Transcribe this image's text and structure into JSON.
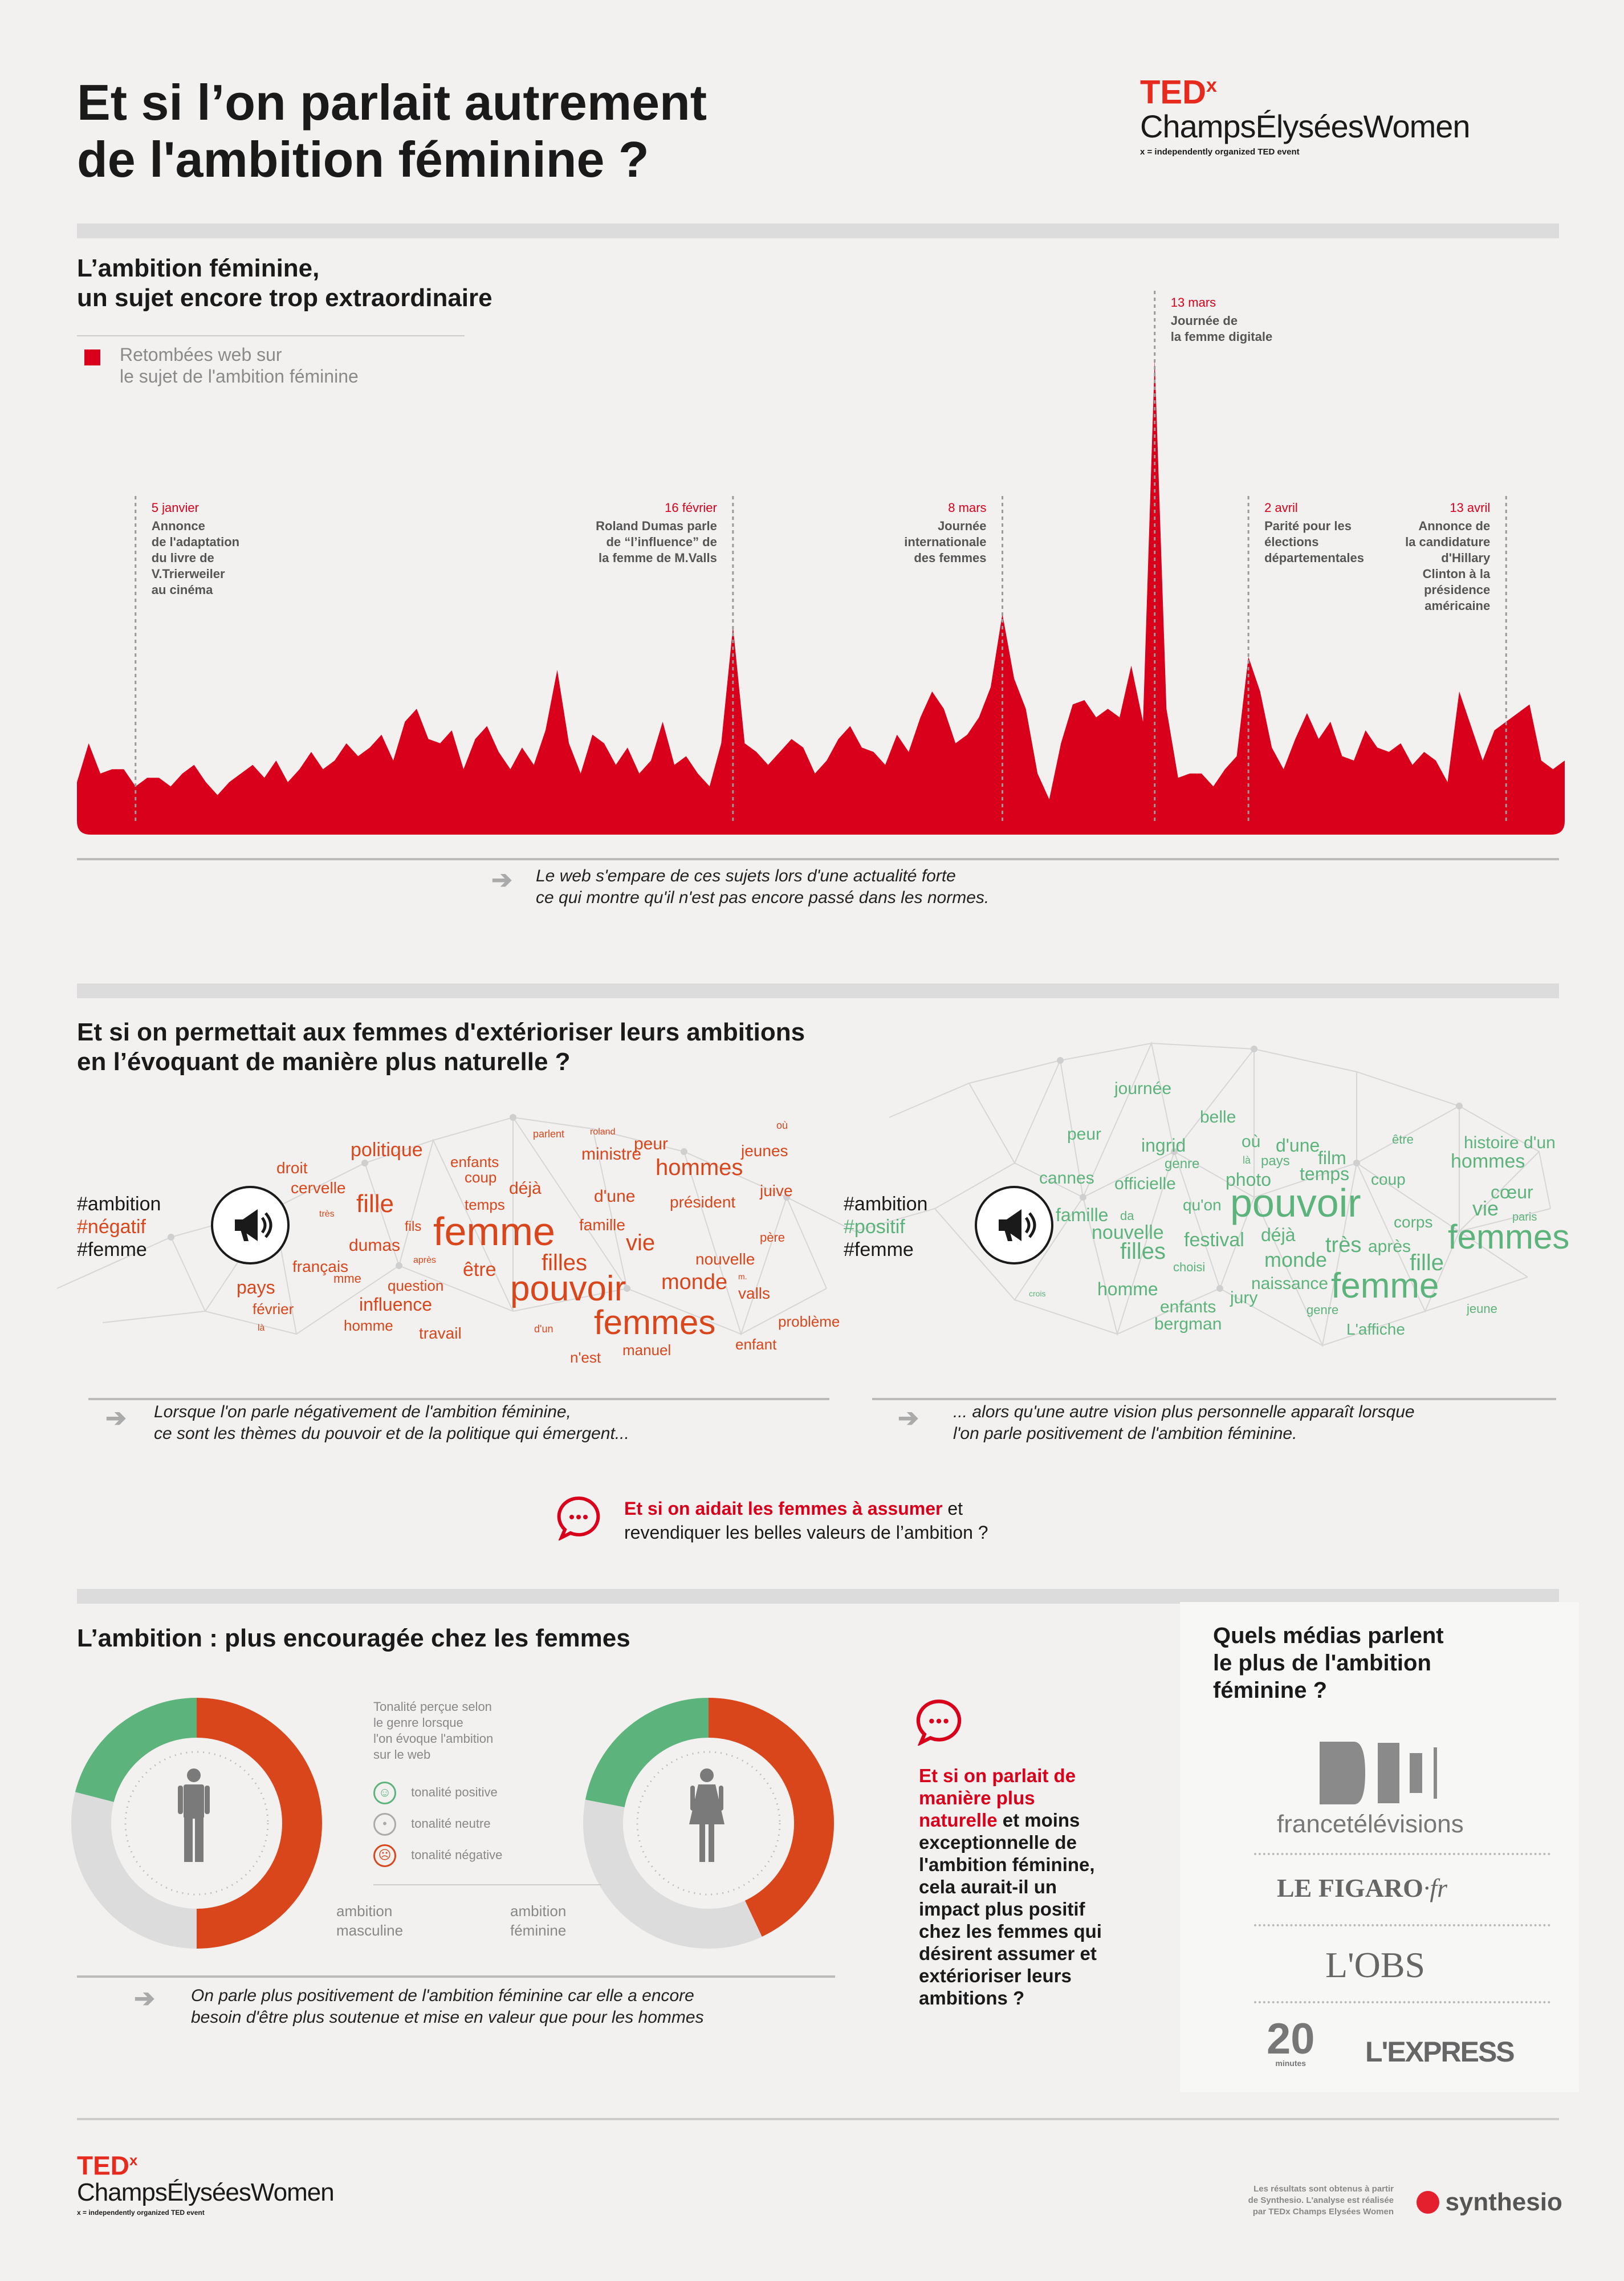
{
  "header": {
    "title_line1": "Et si l’on parlait autrement",
    "title_line2": "de l'ambition féminine ?",
    "logo_ted": "TED",
    "logo_x": "x",
    "logo_name": "ChampsÉlyséesWomen",
    "logo_tagline": "x = independently organized TED event"
  },
  "section1": {
    "title_line1": "L’ambition féminine,",
    "title_line2": "un sujet encore trop extraordinaire",
    "legend_line1": "Retombées web sur",
    "legend_line2": "le sujet de l'ambition féminine",
    "note_line1": "Le web s'empare de ces sujets lors d'une actualité forte",
    "note_line2": "ce qui montre qu'il n'est pas encore passé dans les normes.",
    "colors": {
      "series": "#d9001b"
    }
  },
  "chart_data": {
    "type": "area",
    "series": [
      {
        "values": [
          9,
          18,
          11,
          12,
          12,
          8,
          10,
          10,
          8,
          11,
          13,
          9,
          6,
          9,
          11,
          13,
          10,
          14,
          9,
          12,
          16,
          12,
          14,
          18,
          15,
          17,
          20,
          14,
          23,
          26,
          19,
          18,
          21,
          12,
          19,
          22,
          16,
          12,
          17,
          13,
          21,
          35,
          18,
          11,
          20,
          18,
          13,
          17,
          11,
          14,
          23,
          13,
          15,
          11,
          8,
          18,
          45,
          18,
          16,
          13,
          16,
          19,
          17,
          11,
          14,
          19,
          22,
          17,
          16,
          13,
          20,
          16,
          24,
          30,
          26,
          18,
          20,
          24,
          31,
          48,
          33,
          26,
          11,
          5,
          18,
          27,
          28,
          24,
          26,
          24,
          36,
          23,
          107,
          26,
          10,
          11,
          11,
          8,
          12,
          15,
          38,
          30,
          17,
          12,
          19,
          25,
          19,
          23,
          15,
          14,
          21,
          17,
          16,
          18,
          13,
          16,
          14,
          9,
          30,
          22,
          14,
          21,
          23,
          25,
          27,
          14,
          12,
          14
        ]
      }
    ],
    "annotations": [
      {
        "date": "5 janvier",
        "text": [
          "Annonce",
          "de l'adaptation",
          "du livre de",
          "V.Trierweiler",
          "au cinéma"
        ]
      },
      {
        "date": "16 février",
        "text": [
          "Roland Dumas parle",
          "de “l’influence” de",
          "la femme de M.Valls"
        ]
      },
      {
        "date": "8 mars",
        "text": [
          "Journée",
          "internationale",
          "des femmes"
        ]
      },
      {
        "date": "13 mars",
        "text": [
          "Journée de",
          "la femme digitale"
        ]
      },
      {
        "date": "2 avril",
        "text": [
          "Parité pour les",
          "élections",
          "départementales"
        ]
      },
      {
        "date": "13 avril",
        "text": [
          "Annonce de",
          "la candidature",
          "d'Hillary",
          "Clinton à la",
          "présidence",
          "américaine"
        ]
      }
    ]
  },
  "section2": {
    "title_line1": "Et si on permettait aux femmes d'extérioriser leurs ambitions",
    "title_line2": "en l’évoquant de manière plus naturelle ?",
    "neg_tag1": "#ambition",
    "neg_tag2": "#négatif",
    "neg_tag3": "#femme",
    "pos_tag1": "#ambition",
    "pos_tag2": "#positif",
    "pos_tag3": "#femme",
    "neg_note_line1": "Lorsque l'on parle négativement de l'ambition féminine,",
    "neg_note_line2": "ce sont les thèmes du pouvoir et de la politique qui émergent...",
    "pos_note_line1": "... alors qu'une autre vision plus personnelle apparaît lorsque",
    "pos_note_line2": "l'on parle positivement de l'ambition féminine.",
    "question_red": "Et si on aidait les femmes à assumer",
    "question_rest1": " et",
    "question_rest2": "revendiquer les belles valeurs de l’ambition ?",
    "colors": {
      "negative": "#d9461b",
      "positive": "#5cb37c"
    },
    "neg_words": [
      "ministre",
      "parlent",
      "roland",
      "peur",
      "où",
      "politique",
      "enfants",
      "jeunes",
      "droit",
      "coup",
      "hommes",
      "cervelle",
      "déjà",
      "d'une",
      "juive",
      "très",
      "fille",
      "temps",
      "président",
      "fils",
      "femme",
      "famille",
      "père",
      "dumas",
      "vie",
      "nouvelle",
      "français",
      "après",
      "être",
      "filles",
      "monde",
      "m.",
      "mme",
      "pays",
      "question",
      "pouvoir",
      "valls",
      "février",
      "influence",
      "femmes",
      "problème",
      "là",
      "homme",
      "travail",
      "d'un",
      "enfant",
      "manuel",
      "n'est"
    ],
    "pos_words": [
      "journée",
      "belle",
      "peur",
      "ingrid",
      "où",
      "d'une",
      "être",
      "histoire d'un",
      "genre",
      "là",
      "pays",
      "film",
      "hommes",
      "cannes",
      "officielle",
      "photo",
      "temps",
      "coup",
      "cœur",
      "qu'on",
      "pouvoir",
      "vie",
      "paris",
      "famille",
      "da",
      "corps",
      "nouvelle",
      "déjà",
      "femmes",
      "festival",
      "très",
      "après",
      "fille",
      "filles",
      "monde",
      "choisi",
      "naissance",
      "crois",
      "homme",
      "femme",
      "jury",
      "enfants",
      "genre",
      "jeune",
      "bergman",
      "L'affiche"
    ]
  },
  "section3": {
    "title": "L’ambition : plus encouragée chez les femmes",
    "legend_title": [
      "Tonalité perçue selon",
      "le genre lorsque",
      "l'on évoque l'ambition",
      "sur le web"
    ],
    "legend_pos": "tonalité positive",
    "legend_neu": "tonalité neutre",
    "legend_neg": "tonalité négative",
    "label_masc_1": "ambition",
    "label_masc_2": "masculine",
    "label_fem_1": "ambition",
    "label_fem_2": "féminine",
    "note_line1": "On parle plus positivement de l'ambition féminine car elle a encore",
    "note_line2": "besoin d'être plus soutenue et mise en valeur que pour les hommes",
    "colors": {
      "positive": "#5cb37c",
      "neutral": "#dcdcdc",
      "negative": "#d9461b"
    },
    "donuts": [
      {
        "name": "ambition masculine",
        "positive": 0.21,
        "neutral": 0.29,
        "negative": 0.5
      },
      {
        "name": "ambition féminine",
        "positive": 0.22,
        "neutral": 0.35,
        "negative": 0.43
      }
    ]
  },
  "section3b": {
    "red_line1": "Et si on parlait de",
    "red_line2": "manière plus",
    "red_line3": "naturelle",
    "rest": [
      " et moins",
      "exceptionnelle de",
      "l'ambition féminine,",
      "cela aurait-il un",
      "impact plus positif",
      "chez les femmes qui",
      "désirent assumer et",
      "extérioriser leurs",
      "ambitions ?"
    ]
  },
  "section4": {
    "title_line1": "Quels médias parlent",
    "title_line2": "le plus de l'ambition",
    "title_line3": "féminine ?",
    "media": [
      "francetélévisions",
      "LE FIGARO",
      "·fr",
      "L'OBS",
      "20",
      "minutes",
      "L'EXPRESS"
    ]
  },
  "footer": {
    "logo_ted": "TED",
    "logo_x": "x",
    "logo_name": "ChampsÉlyséesWomen",
    "logo_tagline": "x = independently organized TED event",
    "credits": [
      "Les résultats sont obtenus à partir",
      "de Synthesio. L'analyse est réalisée",
      "par TEDx Champs Elysées Women"
    ],
    "synthesio": "synthesio"
  }
}
